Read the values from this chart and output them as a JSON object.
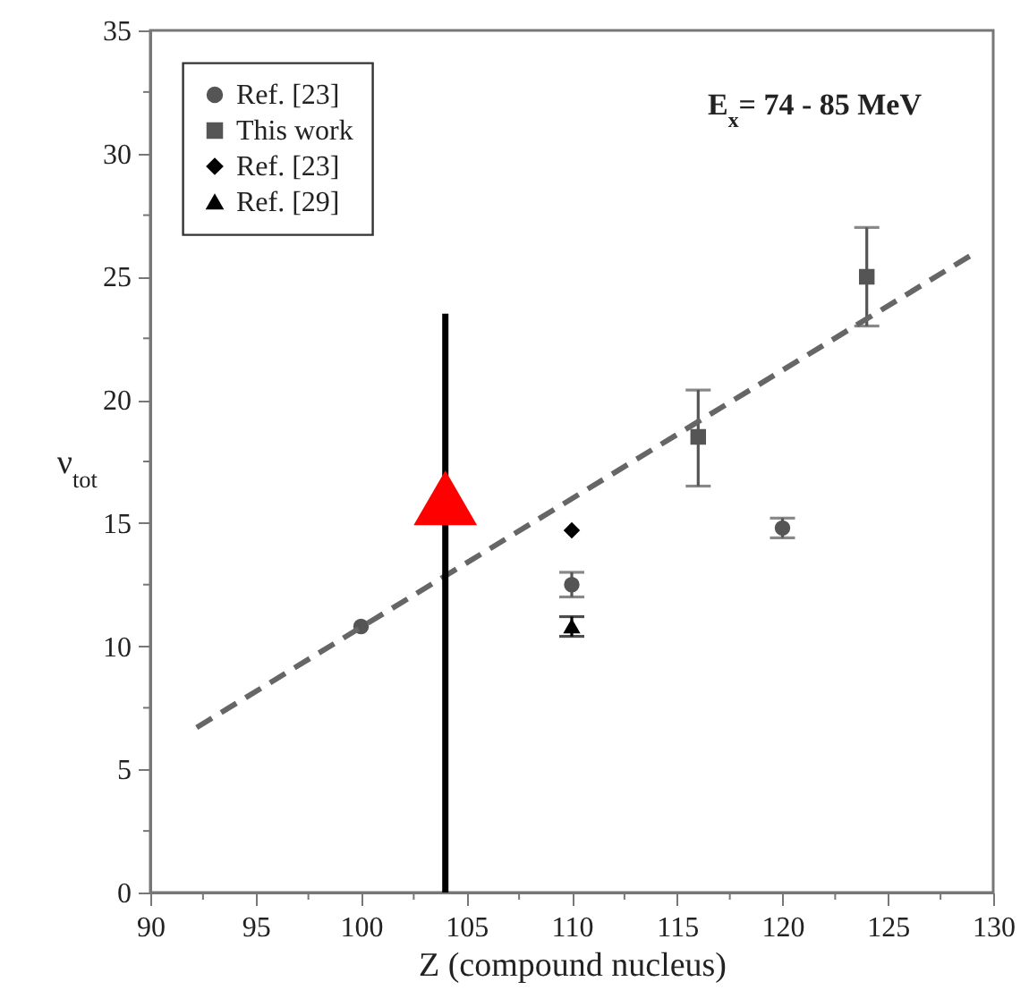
{
  "chart_data": {
    "type": "scatter",
    "xlabel": "Z (compound nucleus)",
    "ylabel": "ν$_{tot}$",
    "annotations": [
      "E$_{x}$= 74 - 85 MeV"
    ],
    "xlim": [
      90,
      130
    ],
    "ylim": [
      0,
      35
    ],
    "xticks": [
      90,
      {
        "value": 92.5,
        "label": null
      },
      95,
      {
        "value": 97.5,
        "label": null
      },
      100,
      {
        "value": 102.5,
        "label": null
      },
      105,
      {
        "value": 107.5,
        "label": null
      },
      110,
      {
        "value": 112.5,
        "label": null
      },
      115,
      {
        "value": 117.5,
        "label": null
      },
      120,
      {
        "value": 122.5,
        "label": null
      },
      125,
      {
        "value": 127.5,
        "label": null
      },
      130
    ],
    "yticks": [
      0,
      {
        "value": 2.5,
        "label": null
      },
      5,
      {
        "value": 7.5,
        "label": null
      },
      10,
      {
        "value": 12.5,
        "label": null
      },
      15,
      {
        "value": 17.5,
        "label": null
      },
      20,
      {
        "value": 22.5,
        "label": null
      },
      25,
      {
        "value": 27.5,
        "label": null
      },
      30,
      {
        "value": 32.5,
        "label": null
      },
      35
    ],
    "grid": false,
    "legend": "top left",
    "series": [
      {
        "name": "Ref. [23]",
        "marker": "circle",
        "color": "#555555",
        "x": [
          100,
          110,
          120
        ],
        "values": [
          10.8,
          12.5,
          14.8
        ],
        "errors": [
          null,
          0.5,
          0.4
        ]
      },
      {
        "name": "This work",
        "marker": "square",
        "color": "#555555",
        "x": [
          116,
          124
        ],
        "values": [
          18.5,
          25
        ],
        "errors": [
          [
            16.5,
            20.4
          ],
          [
            23,
            27
          ]
        ]
      },
      {
        "name": "Ref. [23]",
        "marker": "diamond",
        "color": "#000000",
        "x": [
          110
        ],
        "values": [
          14.7
        ]
      },
      {
        "name": "Ref. [29]",
        "marker": "triangle",
        "color": "#000000",
        "x": [
          110
        ],
        "values": [
          10.8
        ],
        "errors": [
          0.4
        ]
      },
      {
        "type": "line",
        "line_style": "dashed",
        "color": "#666666",
        "x": [
          92.2,
          129
        ],
        "values": [
          6.7,
          25.9
        ]
      },
      {
        "type": "line",
        "line_style": "solid",
        "color": "#000000",
        "x": [
          104,
          104
        ],
        "values": [
          23.5,
          0
        ]
      },
      {
        "type": "scatter",
        "marker": "triangle",
        "color": "#ff0000",
        "x": [
          104
        ],
        "values": [
          16
        ]
      }
    ]
  }
}
